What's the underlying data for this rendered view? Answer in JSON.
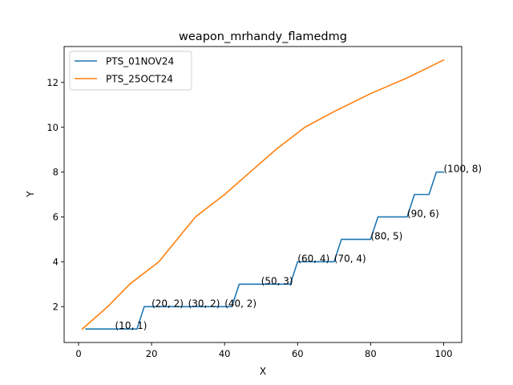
{
  "chart_data": {
    "type": "line",
    "title": "weapon_mrhandy_flamedmg",
    "xlabel": "X",
    "ylabel": "Y",
    "xlim": [
      -3.95,
      104.95
    ],
    "ylim": [
      0.4,
      13.6
    ],
    "xticks": [
      0,
      20,
      40,
      60,
      80,
      100
    ],
    "yticks": [
      2,
      4,
      6,
      8,
      10,
      12
    ],
    "grid": false,
    "legend": "top-left",
    "series": [
      {
        "name": "PTS_01NOV24",
        "color": "#1f77b4",
        "x": [
          2,
          16,
          18,
          42,
          44,
          58,
          60,
          70,
          72,
          80,
          82,
          90,
          92,
          96,
          98,
          100
        ],
        "y": [
          1,
          1,
          2,
          2,
          3,
          3,
          4,
          4,
          5,
          5,
          6,
          6,
          7,
          7,
          8,
          8
        ]
      },
      {
        "name": "PTS_25OCT24",
        "color": "#ff7f0e",
        "x": [
          1,
          8,
          14,
          22,
          32,
          40,
          47,
          54,
          62,
          70,
          80,
          90,
          100
        ],
        "y": [
          1,
          2,
          3,
          4,
          6,
          7,
          8,
          9,
          10,
          10.7,
          11.5,
          12.2,
          13
        ]
      }
    ],
    "annotations": [
      {
        "x": 10,
        "y": 1,
        "text": "(10, 1)"
      },
      {
        "x": 20,
        "y": 2,
        "text": "(20, 2)"
      },
      {
        "x": 30,
        "y": 2,
        "text": "(30, 2)"
      },
      {
        "x": 40,
        "y": 2,
        "text": "(40, 2)"
      },
      {
        "x": 50,
        "y": 3,
        "text": "(50, 3)"
      },
      {
        "x": 60,
        "y": 4,
        "text": "(60, 4)"
      },
      {
        "x": 70,
        "y": 4,
        "text": "(70, 4)"
      },
      {
        "x": 80,
        "y": 5,
        "text": "(80, 5)"
      },
      {
        "x": 90,
        "y": 6,
        "text": "(90, 6)"
      },
      {
        "x": 100,
        "y": 8,
        "text": "(100, 8)"
      }
    ]
  }
}
